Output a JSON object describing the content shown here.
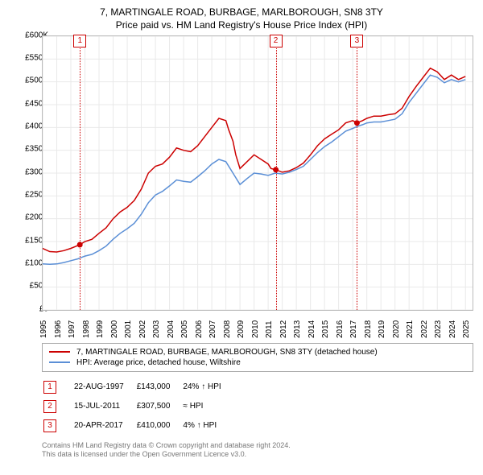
{
  "title_line1": "7, MARTINGALE ROAD, BURBAGE, MARLBOROUGH, SN8 3TY",
  "title_line2": "Price paid vs. HM Land Registry's House Price Index (HPI)",
  "chart": {
    "type": "line",
    "background_color": "#ffffff",
    "grid_color": "#e9e9e9",
    "x_min": 1995,
    "x_max": 2025.5,
    "y_min": 0,
    "y_max": 600000,
    "y_ticks": [
      0,
      50000,
      100000,
      150000,
      200000,
      250000,
      300000,
      350000,
      400000,
      450000,
      500000,
      550000,
      600000
    ],
    "y_tick_labels": [
      "£0",
      "£50K",
      "£100K",
      "£150K",
      "£200K",
      "£250K",
      "£300K",
      "£350K",
      "£400K",
      "£450K",
      "£500K",
      "£550K",
      "£600K"
    ],
    "x_ticks": [
      1995,
      1996,
      1997,
      1998,
      1999,
      2000,
      2001,
      2002,
      2003,
      2004,
      2005,
      2006,
      2007,
      2008,
      2009,
      2010,
      2011,
      2012,
      2013,
      2014,
      2015,
      2016,
      2017,
      2018,
      2019,
      2020,
      2021,
      2022,
      2023,
      2024,
      2025
    ],
    "series": [
      {
        "name": "7, MARTINGALE ROAD, BURBAGE, MARLBOROUGH, SN8 3TY (detached house)",
        "color": "#cc0000",
        "line_width": 1.5,
        "points": [
          [
            1995,
            135000
          ],
          [
            1995.5,
            128000
          ],
          [
            1996,
            127000
          ],
          [
            1996.5,
            130000
          ],
          [
            1997,
            135000
          ],
          [
            1997.64,
            143000
          ],
          [
            1998,
            150000
          ],
          [
            1998.5,
            155000
          ],
          [
            1999,
            168000
          ],
          [
            1999.5,
            180000
          ],
          [
            2000,
            200000
          ],
          [
            2000.5,
            215000
          ],
          [
            2001,
            225000
          ],
          [
            2001.5,
            240000
          ],
          [
            2002,
            265000
          ],
          [
            2002.5,
            300000
          ],
          [
            2003,
            315000
          ],
          [
            2003.5,
            320000
          ],
          [
            2004,
            335000
          ],
          [
            2004.5,
            355000
          ],
          [
            2005,
            350000
          ],
          [
            2005.5,
            347000
          ],
          [
            2006,
            360000
          ],
          [
            2006.5,
            380000
          ],
          [
            2007,
            400000
          ],
          [
            2007.5,
            420000
          ],
          [
            2008,
            415000
          ],
          [
            2008.2,
            395000
          ],
          [
            2008.5,
            370000
          ],
          [
            2008.7,
            340000
          ],
          [
            2009,
            310000
          ],
          [
            2009.5,
            325000
          ],
          [
            2010,
            340000
          ],
          [
            2010.5,
            330000
          ],
          [
            2011,
            320000
          ],
          [
            2011.2,
            310000
          ],
          [
            2011.54,
            307500
          ],
          [
            2012,
            302000
          ],
          [
            2012.5,
            305000
          ],
          [
            2013,
            312000
          ],
          [
            2013.5,
            322000
          ],
          [
            2014,
            340000
          ],
          [
            2014.5,
            360000
          ],
          [
            2015,
            375000
          ],
          [
            2015.5,
            385000
          ],
          [
            2016,
            395000
          ],
          [
            2016.5,
            410000
          ],
          [
            2017,
            415000
          ],
          [
            2017.3,
            410000
          ],
          [
            2017.7,
            415000
          ],
          [
            2018,
            420000
          ],
          [
            2018.5,
            425000
          ],
          [
            2019,
            425000
          ],
          [
            2019.5,
            428000
          ],
          [
            2020,
            430000
          ],
          [
            2020.5,
            442000
          ],
          [
            2021,
            468000
          ],
          [
            2021.5,
            490000
          ],
          [
            2022,
            510000
          ],
          [
            2022.5,
            530000
          ],
          [
            2023,
            522000
          ],
          [
            2023.5,
            505000
          ],
          [
            2024,
            515000
          ],
          [
            2024.5,
            505000
          ],
          [
            2025,
            512000
          ]
        ]
      },
      {
        "name": "HPI: Average price, detached house, Wiltshire",
        "color": "#5b8fd6",
        "line_width": 1.5,
        "points": [
          [
            1995,
            101000
          ],
          [
            1995.5,
            100000
          ],
          [
            1996,
            101000
          ],
          [
            1996.5,
            104000
          ],
          [
            1997,
            108000
          ],
          [
            1997.5,
            112000
          ],
          [
            1998,
            118000
          ],
          [
            1998.5,
            122000
          ],
          [
            1999,
            130000
          ],
          [
            1999.5,
            140000
          ],
          [
            2000,
            155000
          ],
          [
            2000.5,
            168000
          ],
          [
            2001,
            178000
          ],
          [
            2001.5,
            190000
          ],
          [
            2002,
            210000
          ],
          [
            2002.5,
            235000
          ],
          [
            2003,
            252000
          ],
          [
            2003.5,
            260000
          ],
          [
            2004,
            272000
          ],
          [
            2004.5,
            285000
          ],
          [
            2005,
            282000
          ],
          [
            2005.5,
            280000
          ],
          [
            2006,
            292000
          ],
          [
            2006.5,
            305000
          ],
          [
            2007,
            320000
          ],
          [
            2007.5,
            330000
          ],
          [
            2008,
            325000
          ],
          [
            2008.5,
            300000
          ],
          [
            2009,
            275000
          ],
          [
            2009.5,
            288000
          ],
          [
            2010,
            300000
          ],
          [
            2010.5,
            298000
          ],
          [
            2011,
            295000
          ],
          [
            2011.5,
            300000
          ],
          [
            2012,
            298000
          ],
          [
            2012.5,
            302000
          ],
          [
            2013,
            308000
          ],
          [
            2013.5,
            315000
          ],
          [
            2014,
            330000
          ],
          [
            2014.5,
            345000
          ],
          [
            2015,
            358000
          ],
          [
            2015.5,
            368000
          ],
          [
            2016,
            380000
          ],
          [
            2016.5,
            392000
          ],
          [
            2017,
            398000
          ],
          [
            2017.3,
            402000
          ],
          [
            2017.7,
            406000
          ],
          [
            2018,
            410000
          ],
          [
            2018.5,
            412000
          ],
          [
            2019,
            412000
          ],
          [
            2019.5,
            415000
          ],
          [
            2020,
            418000
          ],
          [
            2020.5,
            430000
          ],
          [
            2021,
            455000
          ],
          [
            2021.5,
            475000
          ],
          [
            2022,
            495000
          ],
          [
            2022.5,
            515000
          ],
          [
            2023,
            510000
          ],
          [
            2023.5,
            498000
          ],
          [
            2024,
            505000
          ],
          [
            2024.5,
            500000
          ],
          [
            2025,
            505000
          ]
        ]
      }
    ],
    "sale_markers": [
      {
        "n": "1",
        "year": 1997.64,
        "price": 143000,
        "color": "#cc0000"
      },
      {
        "n": "2",
        "year": 2011.54,
        "price": 307500,
        "color": "#cc0000"
      },
      {
        "n": "3",
        "year": 2017.3,
        "price": 410000,
        "color": "#cc0000"
      }
    ]
  },
  "legend_label_1": "7, MARTINGALE ROAD, BURBAGE, MARLBOROUGH, SN8 3TY (detached house)",
  "legend_label_2": "HPI: Average price, detached house, Wiltshire",
  "legend_color_1": "#cc0000",
  "legend_color_2": "#5b8fd6",
  "sales": [
    {
      "n": "1",
      "date": "22-AUG-1997",
      "price": "£143,000",
      "delta": "24% ↑ HPI"
    },
    {
      "n": "2",
      "date": "15-JUL-2011",
      "price": "£307,500",
      "delta": "≈ HPI"
    },
    {
      "n": "3",
      "date": "20-APR-2017",
      "price": "£410,000",
      "delta": "4% ↑ HPI"
    }
  ],
  "footnote_line1": "Contains HM Land Registry data © Crown copyright and database right 2024.",
  "footnote_line2": "This data is licensed under the Open Government Licence v3.0.",
  "marker_color": "#cc0000"
}
